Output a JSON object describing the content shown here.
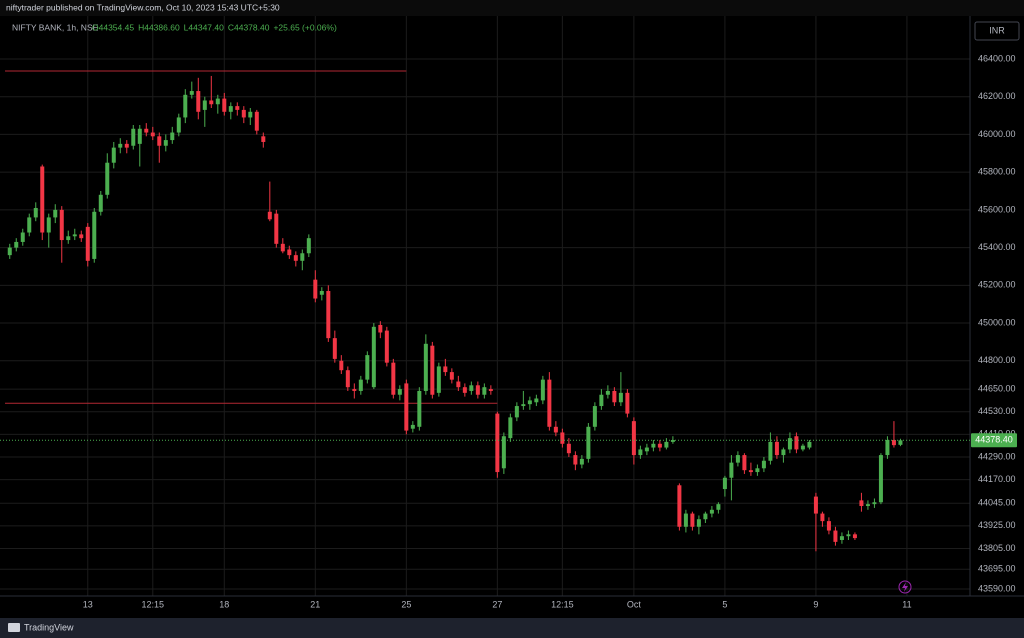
{
  "chart_data": {
    "type": "candlestick",
    "publisher": "niftytrader published on TradingView.com, Oct 10, 2023 15:43 UTC+5:30",
    "symbol": "NIFTY BANK, 1h, NSE",
    "ohlc_text": [
      "O44354.45",
      "H44386.60",
      "L44347.40",
      "C44378.40",
      "+25.65 (+0.06%)"
    ],
    "currency": "INR",
    "brand": "TradingView",
    "up_color": "#4caf50",
    "down_color": "#f23645",
    "ohlc": [
      [
        45360,
        45420,
        45340,
        45400
      ],
      [
        45400,
        45450,
        45380,
        45430
      ],
      [
        45430,
        45500,
        45410,
        45480
      ],
      [
        45480,
        45580,
        45460,
        45560
      ],
      [
        45560,
        45640,
        45540,
        45610
      ],
      [
        45830,
        45840,
        45440,
        45480
      ],
      [
        45480,
        45580,
        45400,
        45560
      ],
      [
        45560,
        45630,
        45530,
        45600
      ],
      [
        45600,
        45620,
        45320,
        45440
      ],
      [
        45440,
        45490,
        45420,
        45460
      ],
      [
        45460,
        45500,
        45440,
        45470
      ],
      [
        45470,
        45490,
        45430,
        45450
      ],
      [
        45510,
        45530,
        45300,
        45330
      ],
      [
        45340,
        45610,
        45320,
        45590
      ],
      [
        45590,
        45700,
        45570,
        45680
      ],
      [
        45680,
        45900,
        45660,
        45850
      ],
      [
        45850,
        45960,
        45820,
        45930
      ],
      [
        45930,
        45980,
        45900,
        45950
      ],
      [
        45950,
        45970,
        45900,
        45930
      ],
      [
        45940,
        46050,
        45920,
        46030
      ],
      [
        45950,
        46050,
        45830,
        46030
      ],
      [
        46030,
        46060,
        45990,
        46010
      ],
      [
        46010,
        46040,
        45970,
        45990
      ],
      [
        45990,
        46010,
        45850,
        45940
      ],
      [
        45940,
        46000,
        45910,
        45970
      ],
      [
        45970,
        46040,
        45950,
        46010
      ],
      [
        46010,
        46110,
        45990,
        46090
      ],
      [
        46090,
        46240,
        46060,
        46210
      ],
      [
        46210,
        46280,
        46190,
        46230
      ],
      [
        46230,
        46300,
        46080,
        46120
      ],
      [
        46130,
        46200,
        46040,
        46180
      ],
      [
        46180,
        46310,
        46140,
        46160
      ],
      [
        46160,
        46210,
        46110,
        46190
      ],
      [
        46190,
        46220,
        46100,
        46120
      ],
      [
        46120,
        46170,
        46080,
        46150
      ],
      [
        46150,
        46170,
        46100,
        46130
      ],
      [
        46130,
        46150,
        46060,
        46090
      ],
      [
        46090,
        46140,
        46050,
        46120
      ],
      [
        46120,
        46130,
        46000,
        46020
      ],
      [
        45990,
        46010,
        45930,
        45960
      ],
      [
        45590,
        45750,
        45540,
        45550
      ],
      [
        45580,
        45600,
        45400,
        45420
      ],
      [
        45420,
        45450,
        45370,
        45380
      ],
      [
        45390,
        45410,
        45340,
        45360
      ],
      [
        45360,
        45380,
        45300,
        45330
      ],
      [
        45330,
        45390,
        45280,
        45370
      ],
      [
        45370,
        45470,
        45350,
        45450
      ],
      [
        45230,
        45280,
        45110,
        45130
      ],
      [
        45150,
        45190,
        45120,
        45170
      ],
      [
        45170,
        45200,
        44900,
        44920
      ],
      [
        44920,
        44960,
        44790,
        44810
      ],
      [
        44800,
        44830,
        44730,
        44750
      ],
      [
        44750,
        44770,
        44640,
        44660
      ],
      [
        44650,
        44680,
        44600,
        44640
      ],
      [
        44640,
        44720,
        44620,
        44700
      ],
      [
        44700,
        44850,
        44680,
        44830
      ],
      [
        44660,
        45000,
        44650,
        44980
      ],
      [
        44990,
        45010,
        44920,
        44950
      ],
      [
        44960,
        44980,
        44770,
        44790
      ],
      [
        44790,
        44810,
        44600,
        44620
      ],
      [
        44620,
        44670,
        44590,
        44650
      ],
      [
        44680,
        44700,
        44410,
        44430
      ],
      [
        44440,
        44480,
        44420,
        44460
      ],
      [
        44450,
        44660,
        44430,
        44640
      ],
      [
        44640,
        44940,
        44620,
        44890
      ],
      [
        44880,
        44900,
        44600,
        44620
      ],
      [
        44630,
        44790,
        44610,
        44770
      ],
      [
        44770,
        44810,
        44720,
        44740
      ],
      [
        44740,
        44760,
        44680,
        44700
      ],
      [
        44690,
        44720,
        44640,
        44660
      ],
      [
        44660,
        44680,
        44610,
        44630
      ],
      [
        44640,
        44690,
        44620,
        44670
      ],
      [
        44670,
        44690,
        44600,
        44620
      ],
      [
        44620,
        44680,
        44600,
        44660
      ],
      [
        44650,
        44670,
        44620,
        44640
      ],
      [
        44520,
        44530,
        44180,
        44210
      ],
      [
        44230,
        44420,
        44200,
        44400
      ],
      [
        44390,
        44520,
        44370,
        44500
      ],
      [
        44500,
        44580,
        44480,
        44560
      ],
      [
        44560,
        44640,
        44540,
        44570
      ],
      [
        44570,
        44610,
        44540,
        44590
      ],
      [
        44580,
        44620,
        44560,
        44600
      ],
      [
        44590,
        44720,
        44570,
        44700
      ],
      [
        44700,
        44740,
        44430,
        44450
      ],
      [
        44450,
        44480,
        44400,
        44420
      ],
      [
        44420,
        44440,
        44340,
        44360
      ],
      [
        44360,
        44390,
        44290,
        44310
      ],
      [
        44300,
        44320,
        44220,
        44250
      ],
      [
        44250,
        44300,
        44230,
        44280
      ],
      [
        44280,
        44470,
        44260,
        44450
      ],
      [
        44450,
        44580,
        44430,
        44560
      ],
      [
        44560,
        44650,
        44540,
        44620
      ],
      [
        44620,
        44670,
        44600,
        44640
      ],
      [
        44640,
        44660,
        44560,
        44580
      ],
      [
        44580,
        44740,
        44560,
        44630
      ],
      [
        44630,
        44650,
        44500,
        44520
      ],
      [
        44480,
        44500,
        44250,
        44300
      ],
      [
        44300,
        44350,
        44280,
        44330
      ],
      [
        44320,
        44360,
        44300,
        44340
      ],
      [
        44340,
        44380,
        44320,
        44360
      ],
      [
        44360,
        44380,
        44320,
        44340
      ],
      [
        44340,
        44390,
        44330,
        44370
      ],
      [
        44370,
        44400,
        44360,
        44380
      ],
      [
        44140,
        44150,
        43900,
        43920
      ],
      [
        43920,
        44010,
        43890,
        43990
      ],
      [
        43990,
        44000,
        43900,
        43920
      ],
      [
        43920,
        43980,
        43880,
        43960
      ],
      [
        43960,
        44000,
        43940,
        43990
      ],
      [
        43990,
        44030,
        43970,
        44010
      ],
      [
        44010,
        44050,
        43990,
        44040
      ],
      [
        44120,
        44190,
        44080,
        44180
      ],
      [
        44180,
        44300,
        44060,
        44260
      ],
      [
        44260,
        44320,
        44240,
        44300
      ],
      [
        44300,
        44310,
        44200,
        44220
      ],
      [
        44220,
        44260,
        44190,
        44210
      ],
      [
        44210,
        44250,
        44190,
        44230
      ],
      [
        44230,
        44290,
        44210,
        44270
      ],
      [
        44270,
        44420,
        44250,
        44370
      ],
      [
        44370,
        44400,
        44280,
        44300
      ],
      [
        44300,
        44340,
        44260,
        44330
      ],
      [
        44330,
        44420,
        44310,
        44390
      ],
      [
        44400,
        44420,
        44310,
        44330
      ],
      [
        44330,
        44360,
        44320,
        44350
      ],
      [
        44340,
        44380,
        44330,
        44370
      ],
      [
        44080,
        44100,
        43790,
        43990
      ],
      [
        43990,
        44000,
        43920,
        43950
      ],
      [
        43950,
        43970,
        43880,
        43900
      ],
      [
        43900,
        43920,
        43820,
        43840
      ],
      [
        43850,
        43890,
        43830,
        43870
      ],
      [
        43870,
        43900,
        43850,
        43880
      ],
      [
        43880,
        43890,
        43850,
        43860
      ],
      [
        44060,
        44100,
        44000,
        44030
      ],
      [
        44030,
        44060,
        44010,
        44040
      ],
      [
        44040,
        44070,
        44020,
        44050
      ],
      [
        44050,
        44310,
        44040,
        44300
      ],
      [
        44300,
        44400,
        44280,
        44380
      ],
      [
        44380,
        44480,
        44340,
        44352.75
      ],
      [
        44354.45,
        44386.6,
        44347.4,
        44378.4
      ]
    ],
    "xlim": [
      -1.5,
      147.7
    ],
    "xticks": [
      {
        "value": 12,
        "label": "13"
      },
      {
        "value": 22,
        "label": "12:15"
      },
      {
        "value": 33,
        "label": "18"
      },
      {
        "value": 47,
        "label": "21"
      },
      {
        "value": 61,
        "label": "25"
      },
      {
        "value": 75,
        "label": "27"
      },
      {
        "value": 85,
        "label": "12:15"
      },
      {
        "value": 96,
        "label": "Oct"
      },
      {
        "value": 110,
        "label": "5"
      },
      {
        "value": 124,
        "label": "9"
      },
      {
        "value": 138,
        "label": "11"
      }
    ],
    "ylim": [
      43553,
      46596
    ],
    "yticks": [
      {
        "value": 46400,
        "label": "46400.00"
      },
      {
        "value": 46200,
        "label": "46200.00"
      },
      {
        "value": 46000,
        "label": "46000.00"
      },
      {
        "value": 45800,
        "label": "45800.00"
      },
      {
        "value": 45600,
        "label": "45600.00"
      },
      {
        "value": 45400,
        "label": "45400.00"
      },
      {
        "value": 45200,
        "label": "45200.00"
      },
      {
        "value": 45000,
        "label": "45000.00"
      },
      {
        "value": 44800,
        "label": "44800.00"
      },
      {
        "value": 44650,
        "label": "44650.00"
      },
      {
        "value": 44530,
        "label": "44530.00"
      },
      {
        "value": 44410,
        "label": "44410.00"
      },
      {
        "value": 44290,
        "label": "44290.00"
      },
      {
        "value": 44170,
        "label": "44170.00"
      },
      {
        "value": 44045,
        "label": "44045.00"
      },
      {
        "value": 43925,
        "label": "43925.00"
      },
      {
        "value": 43805,
        "label": "43805.00"
      },
      {
        "value": 43695,
        "label": "43695.00"
      },
      {
        "value": 43590,
        "label": "43590.00"
      }
    ],
    "grid": true,
    "hlines": [
      {
        "value": 46336,
        "end": 61,
        "color": "#b22833"
      },
      {
        "value": 44575,
        "end": 75,
        "color": "#b22833"
      }
    ],
    "last_price": {
      "value": 44378.4,
      "label": "44378.40",
      "color": "#4caf50"
    }
  }
}
